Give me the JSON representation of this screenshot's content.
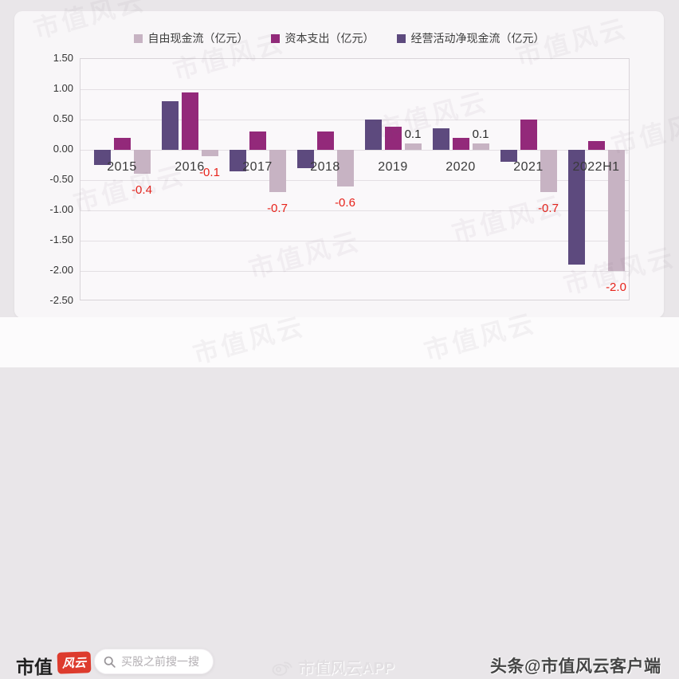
{
  "watermark_text": "市值风云",
  "chart_data": {
    "type": "bar",
    "title": "",
    "categories": [
      "2015",
      "2016",
      "2017",
      "2018",
      "2019",
      "2020",
      "2021",
      "2022H1"
    ],
    "series": [
      {
        "key": "operating-net-cashflow",
        "name": "经营活动净现金流（亿元）",
        "color": "#5d4a7e",
        "values": [
          -0.25,
          0.8,
          -0.35,
          -0.3,
          0.5,
          0.35,
          -0.2,
          -1.9
        ]
      },
      {
        "key": "capex",
        "name": "资本支出（亿元）",
        "color": "#93297a",
        "values": [
          0.2,
          0.95,
          0.3,
          0.3,
          0.38,
          0.2,
          0.5,
          0.15
        ]
      },
      {
        "key": "free-cashflow",
        "name": "自由现金流（亿元）",
        "color": "#c7b3c3",
        "values": [
          -0.4,
          -0.1,
          -0.7,
          -0.6,
          0.1,
          0.1,
          -0.7,
          -2.0
        ],
        "labels": [
          "-0.4",
          "-0.1",
          "-0.7",
          "-0.6",
          "0.1",
          "0.1",
          "-0.7",
          "-2.0"
        ]
      }
    ],
    "labeled_series": "free-cashflow",
    "legend": [
      {
        "label": "自由现金流（亿元）",
        "color": "#c7b3c3"
      },
      {
        "label": "资本支出（亿元）",
        "color": "#93297a"
      },
      {
        "label": "经营活动净现金流（亿元）",
        "color": "#5d4a7e"
      }
    ],
    "legend_position": "top",
    "grid": true,
    "ylim": [
      -2.5,
      1.5
    ],
    "yticks": [
      "1.50",
      "1.00",
      "0.50",
      "0.00",
      "-0.50",
      "-1.00",
      "-1.50",
      "-2.00",
      "-2.50"
    ],
    "label_colors": {
      "positive": "#2b2b2b",
      "negative": "#e7231b"
    }
  },
  "footer": {
    "brand_text": "市值",
    "brand_badge": "风云",
    "search_placeholder": "买股之前搜一搜",
    "center_watermark": "市值风云APP",
    "right_credit": "头条@市值风云客户端"
  }
}
